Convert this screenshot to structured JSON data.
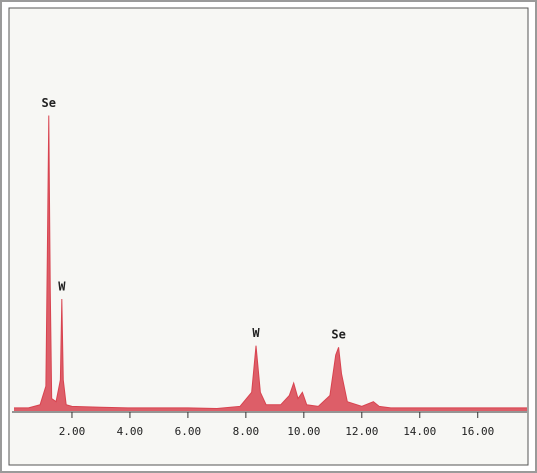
{
  "chart_data": {
    "type": "area",
    "color": "#d8434f",
    "x": [
      0,
      0.5,
      0.9,
      1.1,
      1.15,
      1.2,
      1.25,
      1.3,
      1.45,
      1.6,
      1.65,
      1.7,
      1.8,
      2.0,
      3,
      4,
      5,
      6,
      7,
      7.8,
      8.2,
      8.35,
      8.5,
      8.7,
      9.2,
      9.5,
      9.65,
      9.8,
      9.95,
      10.1,
      10.5,
      10.9,
      11.1,
      11.2,
      11.3,
      11.5,
      12,
      12.4,
      12.6,
      13,
      14,
      15,
      16,
      17,
      17.7
    ],
    "values": [
      1,
      1,
      2,
      8,
      50,
      95,
      40,
      4,
      3,
      10,
      36,
      10,
      2,
      1.5,
      1.2,
      1,
      1,
      1,
      0.8,
      1.5,
      6,
      21,
      6,
      2,
      2,
      5,
      9,
      4,
      6,
      2,
      1.5,
      5,
      18,
      20.5,
      12,
      3,
      1.5,
      3,
      1.5,
      1,
      1,
      1,
      1,
      1,
      1
    ],
    "xlim": [
      0,
      17.7
    ],
    "ylim": [
      0,
      100
    ],
    "xticks": [
      {
        "value": 2,
        "label": "2.00"
      },
      {
        "value": 4,
        "label": "4.00"
      },
      {
        "value": 6,
        "label": "6.00"
      },
      {
        "value": 8,
        "label": "8.00"
      },
      {
        "value": 10,
        "label": "10.00"
      },
      {
        "value": 12,
        "label": "12.00"
      },
      {
        "value": 14,
        "label": "14.00"
      },
      {
        "value": 16,
        "label": "16.00"
      }
    ],
    "annotations": [
      {
        "text": "Se",
        "x": 1.2,
        "y": 95
      },
      {
        "text": "W",
        "x": 1.65,
        "y": 36
      },
      {
        "text": "W",
        "x": 8.35,
        "y": 21
      },
      {
        "text": "Se",
        "x": 11.2,
        "y": 20.5
      }
    ]
  }
}
